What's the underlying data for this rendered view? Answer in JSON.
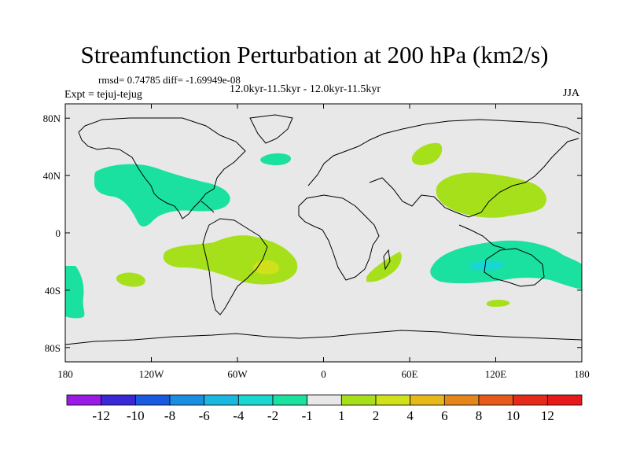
{
  "title": "Streamfunction Perturbation at 200 hPa (km2/s)",
  "stats_label": "rmsd= 0.74785 diff= -1.69949e-08",
  "center_label": "12.0kyr-11.5kyr - 12.0kyr-11.5kyr",
  "expt_label": "Expt = tejuj-tejug",
  "season_label": "JJA",
  "map": {
    "lon_range": [
      -180,
      180
    ],
    "lat_range": [
      -90,
      90
    ],
    "lat_ticks": [
      {
        "value": 80,
        "label": "80N"
      },
      {
        "value": 40,
        "label": "40N"
      },
      {
        "value": 0,
        "label": "0"
      },
      {
        "value": -40,
        "label": "40S"
      },
      {
        "value": -80,
        "label": "80S"
      }
    ],
    "lon_ticks": [
      {
        "value": -180,
        "label": "180"
      },
      {
        "value": -120,
        "label": "120W"
      },
      {
        "value": -60,
        "label": "60W"
      },
      {
        "value": 0,
        "label": "0"
      },
      {
        "value": 60,
        "label": "60E"
      },
      {
        "value": 120,
        "label": "120E"
      },
      {
        "value": 180,
        "label": "180"
      }
    ],
    "background_color": "#e8e8e8"
  },
  "colorbar": {
    "labels": [
      "-12",
      "-10",
      "-8",
      "-6",
      "-4",
      "-2",
      "-1",
      "1",
      "2",
      "4",
      "6",
      "8",
      "10",
      "12"
    ],
    "colors": [
      "#9a1ae6",
      "#3a28d6",
      "#1a5ae0",
      "#1a8ee0",
      "#1ab8e0",
      "#1ad6d0",
      "#1ae0a0",
      "#e8e8e8",
      "#a6e01a",
      "#d0e01a",
      "#e6b81a",
      "#e6861a",
      "#e65a1a",
      "#e62a1a",
      "#e61a1a"
    ]
  },
  "anomaly_regions": [
    {
      "name": "north-pacific-negative",
      "level": "-1",
      "color": "#1ae0a0"
    },
    {
      "name": "north-atlantic-negative",
      "level": "-1",
      "color": "#1ae0a0"
    },
    {
      "name": "south-pacific-negative",
      "level": "-1",
      "color": "#1ae0a0"
    },
    {
      "name": "indian-ocean-negative",
      "level": "-1",
      "color": "#1ae0a0"
    },
    {
      "name": "south-america-positive",
      "level": "1",
      "color": "#a6e01a"
    },
    {
      "name": "asia-positive",
      "level": "1",
      "color": "#a6e01a"
    },
    {
      "name": "south-africa-positive",
      "level": "1",
      "color": "#a6e01a"
    },
    {
      "name": "south-atlantic-max",
      "level": "2",
      "color": "#d0e01a"
    }
  ]
}
